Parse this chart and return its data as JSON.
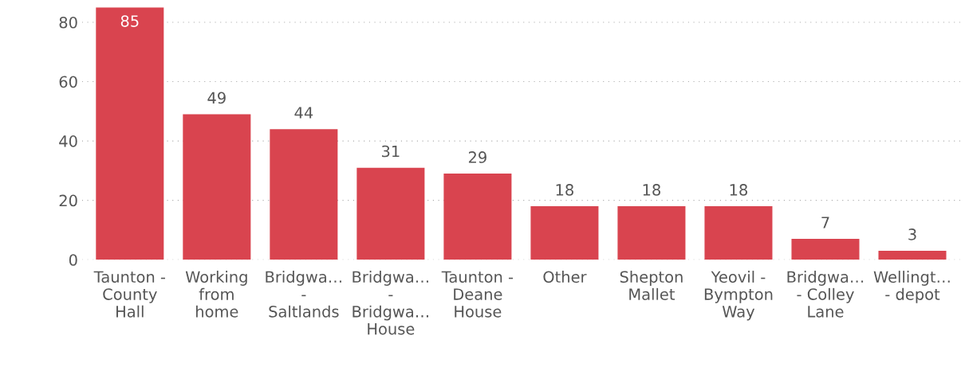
{
  "chart_data": {
    "type": "bar",
    "categories": [
      "Taunton -\nCounty\nHall",
      "Working\nfrom\nhome",
      "Bridgwa…\n-\nSaltlands",
      "Bridgwa…\n-\nBridgwa…\nHouse",
      "Taunton -\nDeane\nHouse",
      "Other",
      "Shepton\nMallet",
      "Yeovil -\nBympton\nWay",
      "Bridgwa…\n- Colley\nLane",
      "Wellingt…\n- depot"
    ],
    "values": [
      85,
      49,
      44,
      31,
      29,
      18,
      18,
      18,
      7,
      3
    ],
    "color": "#d9444f",
    "ylim": [
      0,
      85
    ],
    "yticks": [
      0,
      20,
      40,
      60,
      80
    ],
    "grid": "y",
    "data_labels": true
  }
}
